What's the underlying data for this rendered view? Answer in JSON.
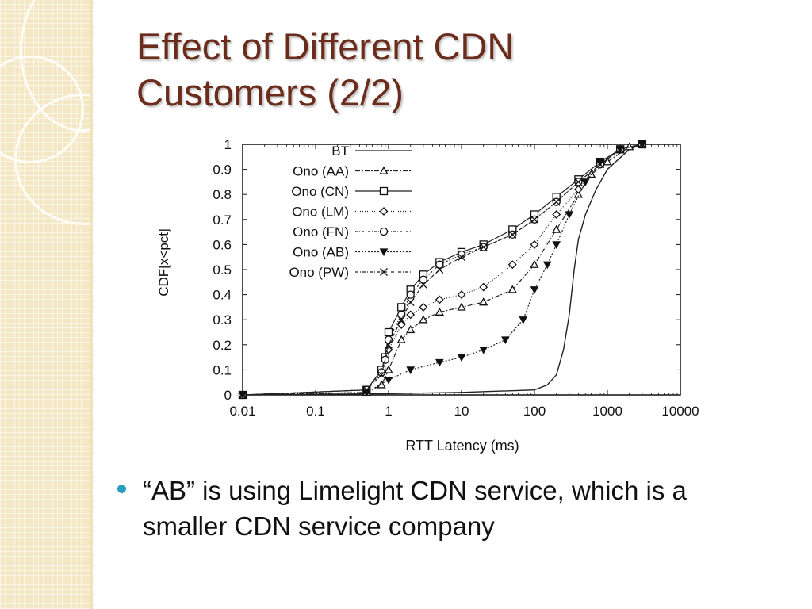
{
  "slide": {
    "title_line1": "Effect of Different CDN",
    "title_line2": "Customers (2/2)",
    "bullet": "“AB” is using Limelight CDN service, which is a smaller CDN service company",
    "colors": {
      "title": "#6b2c1c",
      "bullet_dot": "#2b9fc1",
      "side_panel": "#f4e8c4"
    }
  },
  "chart_data": {
    "type": "line",
    "title": "",
    "xlabel": "RTT Latency (ms)",
    "ylabel": "CDF[x<pct]",
    "xscale": "log",
    "xlim": [
      0.01,
      10000
    ],
    "ylim": [
      0,
      1
    ],
    "xticks": [
      0.01,
      0.1,
      1,
      10,
      100,
      1000,
      10000
    ],
    "xtick_labels": [
      "0.01",
      "0.1",
      "1",
      "10",
      "100",
      "1000",
      "10000"
    ],
    "yticks": [
      0,
      0.1,
      0.2,
      0.3,
      0.4,
      0.5,
      0.6,
      0.7,
      0.8,
      0.9,
      1
    ],
    "ytick_labels": [
      "0",
      "0.1",
      "0.2",
      "0.3",
      "0.4",
      "0.5",
      "0.6",
      "0.7",
      "0.8",
      "0.9",
      "1"
    ],
    "grid": false,
    "legend_position": "top-left",
    "series": [
      {
        "name": "BT",
        "dash": "",
        "marker": "none",
        "points": [
          [
            0.01,
            0
          ],
          [
            1,
            0.005
          ],
          [
            10,
            0.01
          ],
          [
            100,
            0.02
          ],
          [
            150,
            0.04
          ],
          [
            200,
            0.08
          ],
          [
            250,
            0.18
          ],
          [
            300,
            0.32
          ],
          [
            350,
            0.5
          ],
          [
            400,
            0.62
          ],
          [
            500,
            0.72
          ],
          [
            700,
            0.82
          ],
          [
            1000,
            0.9
          ],
          [
            2000,
            0.98
          ],
          [
            3000,
            1
          ]
        ]
      },
      {
        "name": "Ono (AA)",
        "dash": "6 2 2 2",
        "marker": "triangle",
        "points": [
          [
            0.01,
            0
          ],
          [
            0.5,
            0.01
          ],
          [
            0.8,
            0.04
          ],
          [
            1,
            0.1
          ],
          [
            1.5,
            0.22
          ],
          [
            2,
            0.26
          ],
          [
            3,
            0.3
          ],
          [
            5,
            0.33
          ],
          [
            10,
            0.35
          ],
          [
            20,
            0.37
          ],
          [
            50,
            0.42
          ],
          [
            100,
            0.52
          ],
          [
            200,
            0.66
          ],
          [
            400,
            0.8
          ],
          [
            600,
            0.88
          ],
          [
            1000,
            0.93
          ],
          [
            2000,
            0.99
          ],
          [
            3000,
            1
          ]
        ]
      },
      {
        "name": "Ono (CN)",
        "dash": "",
        "marker": "square",
        "points": [
          [
            0.01,
            0
          ],
          [
            0.5,
            0.02
          ],
          [
            0.8,
            0.1
          ],
          [
            0.9,
            0.15
          ],
          [
            1,
            0.25
          ],
          [
            1.5,
            0.35
          ],
          [
            2,
            0.42
          ],
          [
            3,
            0.48
          ],
          [
            5,
            0.53
          ],
          [
            10,
            0.57
          ],
          [
            20,
            0.6
          ],
          [
            50,
            0.66
          ],
          [
            100,
            0.72
          ],
          [
            200,
            0.79
          ],
          [
            400,
            0.86
          ],
          [
            800,
            0.93
          ],
          [
            1500,
            0.98
          ],
          [
            3000,
            1
          ]
        ]
      },
      {
        "name": "Ono (LM)",
        "dash": "1 2",
        "marker": "diamond",
        "points": [
          [
            0.01,
            0
          ],
          [
            0.5,
            0.02
          ],
          [
            0.8,
            0.09
          ],
          [
            1,
            0.18
          ],
          [
            1.5,
            0.28
          ],
          [
            2,
            0.32
          ],
          [
            3,
            0.35
          ],
          [
            5,
            0.38
          ],
          [
            10,
            0.4
          ],
          [
            20,
            0.43
          ],
          [
            50,
            0.52
          ],
          [
            100,
            0.6
          ],
          [
            200,
            0.72
          ],
          [
            400,
            0.82
          ],
          [
            800,
            0.92
          ],
          [
            1500,
            0.98
          ],
          [
            3000,
            1
          ]
        ]
      },
      {
        "name": "Ono (FN)",
        "dash": "3 2 1 2",
        "marker": "circle",
        "points": [
          [
            0.01,
            0
          ],
          [
            0.5,
            0.02
          ],
          [
            0.8,
            0.09
          ],
          [
            0.9,
            0.14
          ],
          [
            1,
            0.22
          ],
          [
            1.5,
            0.32
          ],
          [
            2,
            0.4
          ],
          [
            3,
            0.46
          ],
          [
            5,
            0.52
          ],
          [
            10,
            0.56
          ],
          [
            20,
            0.59
          ],
          [
            50,
            0.64
          ],
          [
            100,
            0.7
          ],
          [
            200,
            0.77
          ],
          [
            400,
            0.85
          ],
          [
            800,
            0.92
          ],
          [
            1500,
            0.98
          ],
          [
            3000,
            1
          ]
        ]
      },
      {
        "name": "Ono (AB)",
        "dash": "2 2",
        "marker": "triangle-down",
        "points": [
          [
            0.01,
            0
          ],
          [
            0.5,
            0.01
          ],
          [
            1,
            0.06
          ],
          [
            2,
            0.1
          ],
          [
            5,
            0.13
          ],
          [
            10,
            0.15
          ],
          [
            20,
            0.18
          ],
          [
            40,
            0.22
          ],
          [
            70,
            0.3
          ],
          [
            100,
            0.42
          ],
          [
            150,
            0.52
          ],
          [
            200,
            0.6
          ],
          [
            300,
            0.72
          ],
          [
            500,
            0.85
          ],
          [
            800,
            0.93
          ],
          [
            1500,
            0.98
          ],
          [
            3000,
            1
          ]
        ]
      },
      {
        "name": "Ono (PW)",
        "dash": "4 2 1 2",
        "marker": "x",
        "points": [
          [
            0.01,
            0
          ],
          [
            0.5,
            0.02
          ],
          [
            0.8,
            0.08
          ],
          [
            1,
            0.2
          ],
          [
            1.5,
            0.3
          ],
          [
            2,
            0.37
          ],
          [
            3,
            0.44
          ],
          [
            5,
            0.5
          ],
          [
            10,
            0.55
          ],
          [
            20,
            0.59
          ],
          [
            50,
            0.64
          ],
          [
            100,
            0.7
          ],
          [
            200,
            0.77
          ],
          [
            400,
            0.85
          ],
          [
            800,
            0.92
          ],
          [
            1500,
            0.98
          ],
          [
            3000,
            1
          ]
        ]
      }
    ]
  }
}
